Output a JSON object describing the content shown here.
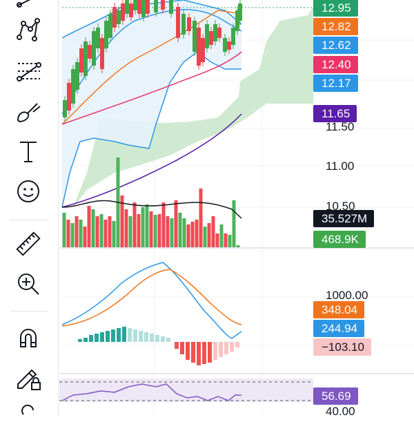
{
  "price_axis": {
    "ticks": [
      {
        "label": "11.50",
        "top": 174
      },
      {
        "label": "11.00",
        "top": 231
      },
      {
        "label": "10.50",
        "top": 289
      }
    ]
  },
  "tags": {
    "price_current": {
      "value": "12.95",
      "color": "#23a169",
      "text": "#ffffff"
    },
    "bb_upper": {
      "value": "12.82",
      "color": "#f0741d",
      "text": "#ffffff"
    },
    "bb_basis": {
      "value": "12.62",
      "color": "#2b96e6",
      "text": "#ffffff"
    },
    "ma_red": {
      "value": "12.40",
      "color": "#e9356a",
      "text": "#ffffff"
    },
    "bb_lower": {
      "value": "12.17",
      "color": "#2b96e6",
      "text": "#ffffff"
    },
    "ma_purple": {
      "value": "11.65",
      "color": "#5b1ea8",
      "text": "#ffffff"
    },
    "volume_ma": {
      "value": "35.527M",
      "color": "#131722",
      "text": "#ffffff"
    },
    "volume": {
      "value": "468.9K",
      "color": "#3fa84b",
      "text": "#ffffff"
    },
    "macd_signal": {
      "value": "348.04",
      "color": "#f0741d",
      "text": "#ffffff"
    },
    "macd_line": {
      "value": "244.94",
      "color": "#2b96e6",
      "text": "#ffffff"
    },
    "macd_hist": {
      "value": "−103.10",
      "color": "#f9c4c6",
      "text": "#131722"
    },
    "rsi": {
      "value": "56.69",
      "color": "#7e57c2",
      "text": "#ffffff"
    }
  },
  "macd_axis": {
    "label": "1000.00"
  },
  "rsi_axis": {
    "label": "40.00"
  },
  "toolbar": {
    "icons": [
      "trend-line-icon",
      "pattern-icon",
      "fib-icon",
      "brush-icon",
      "text-icon",
      "emoji-icon",
      "ruler-icon",
      "zoom-in-icon",
      "magnet-icon",
      "lock-drawing-icon",
      "more-icon"
    ]
  },
  "colors": {
    "bull": "#3fa84b",
    "bear": "#e8454e",
    "bull_vol": "#4db35a",
    "bear_vol": "#ef4a55",
    "cloud": "#c8e6c9",
    "bb_fill": "#e6f2fb"
  }
}
